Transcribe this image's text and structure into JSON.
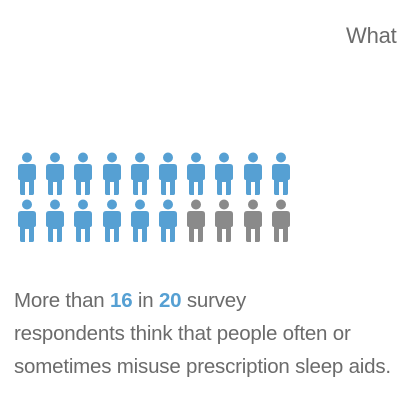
{
  "header": {
    "partial_title": "What t"
  },
  "pictograph": {
    "total": 20,
    "highlighted": 16,
    "per_row": 10,
    "icon": "person-icon",
    "colors": {
      "highlighted": "#56a0d3",
      "other": "#8a8a8a"
    }
  },
  "statement": {
    "prefix": "More than ",
    "count": "16",
    "middle": " in ",
    "total": "20",
    "line1_end": " survey",
    "line2": "respondents think that people often or",
    "line3": "sometimes misuse prescription sleep aids."
  }
}
